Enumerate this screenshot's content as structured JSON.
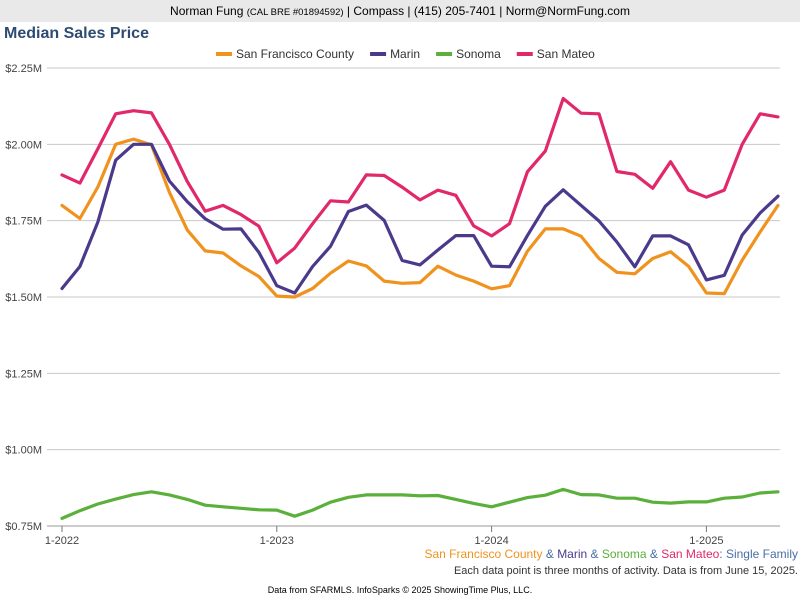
{
  "header": {
    "name": "Norman Fung",
    "license": "(CAL BRE #01894592)",
    "company": "Compass",
    "phone": "(415) 205-7401",
    "email": "Norm@NormFung.com",
    "sep": "|"
  },
  "caption": {
    "parts": [
      {
        "text": "San Francisco County",
        "color": "#f0921e"
      },
      {
        "text": " & ",
        "color": "#4a6fa5"
      },
      {
        "text": "Marin",
        "color": "#4b3a8c"
      },
      {
        "text": " & ",
        "color": "#4a6fa5"
      },
      {
        "text": "Sonoma",
        "color": "#5ab03a"
      },
      {
        "text": " & ",
        "color": "#4a6fa5"
      },
      {
        "text": "San Mateo",
        "color": "#e0286b"
      },
      {
        "text": ": Single Family",
        "color": "#4a6fa5"
      }
    ],
    "note": "Each data point is three months of activity. Data is from June 15, 2025."
  },
  "footer": "Data from SFARMLS. InfoSparks © 2025 ShowingTime Plus, LLC.",
  "chart_data": {
    "type": "line",
    "title": "Median Sales Price",
    "y_ticks": [
      750000,
      1000000,
      1250000,
      1500000,
      1750000,
      2000000,
      2250000
    ],
    "y_tick_labels": [
      "$0.75M",
      "$1.00M",
      "$1.25M",
      "$1.50M",
      "$1.75M",
      "$2.00M",
      "$2.25M"
    ],
    "ylim": [
      750000,
      2250000
    ],
    "x_ticks": [
      "1-2022",
      "1-2023",
      "1-2024",
      "1-2025"
    ],
    "x": [
      "2022-01",
      "2022-02",
      "2022-03",
      "2022-04",
      "2022-05",
      "2022-06",
      "2022-07",
      "2022-08",
      "2022-09",
      "2022-10",
      "2022-11",
      "2022-12",
      "2023-01",
      "2023-02",
      "2023-03",
      "2023-04",
      "2023-05",
      "2023-06",
      "2023-07",
      "2023-08",
      "2023-09",
      "2023-10",
      "2023-11",
      "2023-12",
      "2024-01",
      "2024-02",
      "2024-03",
      "2024-04",
      "2024-05",
      "2024-06",
      "2024-07",
      "2024-08",
      "2024-09",
      "2024-10",
      "2024-11",
      "2024-12",
      "2025-01",
      "2025-02",
      "2025-03",
      "2025-04",
      "2025-05"
    ],
    "grid": true,
    "legend_position": "top",
    "series": [
      {
        "name": "San Francisco County",
        "color": "#f0921e",
        "values": [
          1800000,
          1757000,
          1860000,
          2000000,
          2017000,
          1998000,
          1843000,
          1719000,
          1651000,
          1644000,
          1602000,
          1567000,
          1503000,
          1500000,
          1528000,
          1578000,
          1618000,
          1602000,
          1552000,
          1545000,
          1547000,
          1601000,
          1572000,
          1552000,
          1527000,
          1537000,
          1650000,
          1723000,
          1723000,
          1699000,
          1626000,
          1581000,
          1576000,
          1626000,
          1648000,
          1601000,
          1513000,
          1511000,
          1621000,
          1713000,
          1800000
        ]
      },
      {
        "name": "Marin",
        "color": "#4b3a8c",
        "values": [
          1528000,
          1600000,
          1745000,
          1948000,
          2000000,
          2000000,
          1880000,
          1812000,
          1756000,
          1722000,
          1723000,
          1646000,
          1537000,
          1513000,
          1600000,
          1666000,
          1780000,
          1801000,
          1751000,
          1620000,
          1605000,
          1654000,
          1701000,
          1701000,
          1601000,
          1599000,
          1701000,
          1797000,
          1851000,
          1800000,
          1749000,
          1680000,
          1599000,
          1700000,
          1700000,
          1671000,
          1556000,
          1571000,
          1703000,
          1775000,
          1830000
        ]
      },
      {
        "name": "Sonoma",
        "color": "#5ab03a",
        "values": [
          775000,
          800000,
          822000,
          838000,
          853000,
          862000,
          852000,
          837000,
          818000,
          813000,
          808000,
          803000,
          802000,
          782000,
          802000,
          828000,
          844000,
          852000,
          852000,
          852000,
          849000,
          850000,
          837000,
          824000,
          813000,
          828000,
          843000,
          851000,
          870000,
          853000,
          852000,
          841000,
          841000,
          828000,
          825000,
          829000,
          829000,
          841000,
          845000,
          858000,
          862000
        ]
      },
      {
        "name": "San Mateo",
        "color": "#e0286b",
        "values": [
          1900000,
          1873000,
          1985000,
          2100000,
          2110000,
          2103000,
          2000000,
          1878000,
          1781000,
          1800000,
          1770000,
          1732000,
          1612000,
          1660000,
          1740000,
          1815000,
          1811000,
          1900000,
          1898000,
          1860000,
          1818000,
          1850000,
          1833000,
          1733000,
          1700000,
          1740000,
          1910000,
          1978000,
          2150000,
          2102000,
          2100000,
          1911000,
          1902000,
          1856000,
          1943000,
          1850000,
          1827000,
          1850000,
          2000000,
          2100000,
          2090000
        ]
      }
    ]
  }
}
